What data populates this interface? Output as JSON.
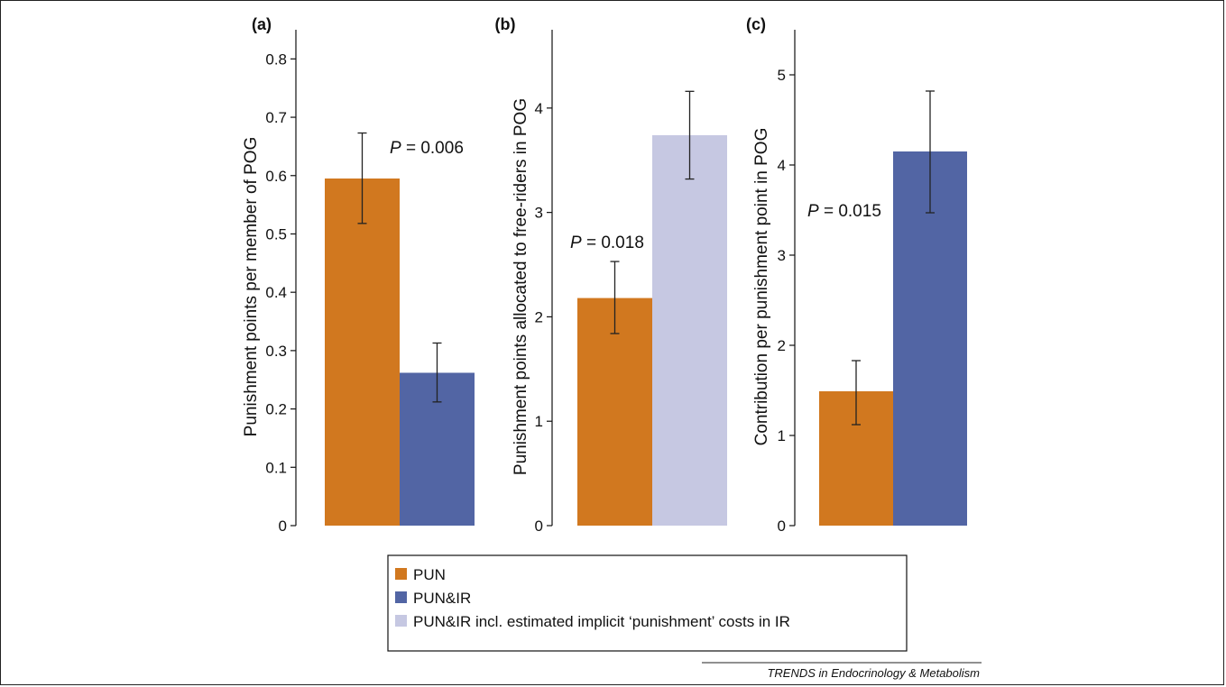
{
  "chart_data": [
    {
      "type": "bar",
      "panel_label": "(a)",
      "ylabel": "Punishment points per member of POG",
      "ylim": [
        0,
        0.85
      ],
      "yticks": [
        "0",
        "0.1",
        "0.2",
        "0.3",
        "0.4",
        "0.5",
        "0.6",
        "0.7",
        "0.8"
      ],
      "annotation": {
        "italic": "P",
        "rest": " = 0.006"
      },
      "bars": [
        {
          "series": "PUN",
          "value": 0.595,
          "err_low": 0.518,
          "err_high": 0.673
        },
        {
          "series": "PUN&IR",
          "value": 0.262,
          "err_low": 0.212,
          "err_high": 0.313
        }
      ]
    },
    {
      "type": "bar",
      "panel_label": "(b)",
      "ylabel": "Punishment points allocated to free-riders in POG",
      "ylim": [
        0,
        4.75
      ],
      "yticks": [
        "0",
        "1",
        "2",
        "3",
        "4"
      ],
      "annotation": {
        "italic": "P",
        "rest": " = 0.018"
      },
      "bars": [
        {
          "series": "PUN",
          "value": 2.18,
          "err_low": 1.84,
          "err_high": 2.53
        },
        {
          "series": "PUN&IR incl. estimated implicit ‘punishment’ costs in IR",
          "value": 3.74,
          "err_low": 3.32,
          "err_high": 4.16
        }
      ]
    },
    {
      "type": "bar",
      "panel_label": "(c)",
      "ylabel": "Contribution per punishment point in POG",
      "ylim": [
        0,
        5.5
      ],
      "yticks": [
        "0",
        "1",
        "2",
        "3",
        "4",
        "5"
      ],
      "annotation": {
        "italic": "P",
        "rest": " = 0.015"
      },
      "bars": [
        {
          "series": "PUN",
          "value": 1.49,
          "err_low": 1.12,
          "err_high": 1.83
        },
        {
          "series": "PUN&IR",
          "value": 4.15,
          "err_low": 3.47,
          "err_high": 4.82
        }
      ]
    }
  ],
  "legend": {
    "placement": "bottom-center",
    "items": [
      {
        "label": "PUN",
        "color": "#d1781f"
      },
      {
        "label": "PUN&IR",
        "color": "#5265a4"
      },
      {
        "label": "PUN&IR incl. estimated implicit ‘punishment’ costs in IR",
        "color": "#c6c8e2"
      }
    ]
  },
  "colors": {
    "PUN": "#d1781f",
    "PUN&IR": "#5265a4",
    "PUN&IR incl. estimated implicit ‘punishment’ costs in IR": "#c6c8e2"
  },
  "credit": "TRENDS in Endocrinology & Metabolism"
}
